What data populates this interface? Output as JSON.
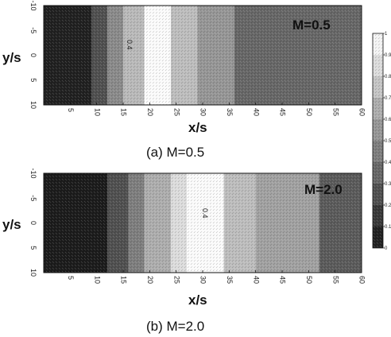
{
  "chart_data": [
    {
      "type": "heatmap",
      "panel_label": "M=0.5",
      "caption": "(a)  M=0.5",
      "xlabel": "x/s",
      "ylabel": "y/s",
      "x_ticks": [
        "5",
        "10",
        "15",
        "20",
        "25",
        "30",
        "35",
        "40",
        "45",
        "50",
        "55",
        "60"
      ],
      "y_ticks": [
        "-10",
        "-5",
        "0",
        "5",
        "10"
      ],
      "xlim": [
        0,
        60
      ],
      "ylim": [
        -10,
        10
      ],
      "in_plot_annotation": "0.4",
      "bands": [
        {
          "x0": 0,
          "x1": 9,
          "value": 0.05
        },
        {
          "x0": 9,
          "x1": 12,
          "value": 0.25
        },
        {
          "x0": 12,
          "x1": 15,
          "value": 0.5
        },
        {
          "x0": 15,
          "x1": 19,
          "value": 0.7
        },
        {
          "x0": 19,
          "x1": 24,
          "value": 0.98
        },
        {
          "x0": 24,
          "x1": 29,
          "value": 0.72
        },
        {
          "x0": 29,
          "x1": 36,
          "value": 0.55
        },
        {
          "x0": 36,
          "x1": 60,
          "value": 0.35
        }
      ]
    },
    {
      "type": "heatmap",
      "panel_label": "M=2.0",
      "caption": "(b)  M=2.0",
      "xlabel": "x/s",
      "ylabel": "y/s",
      "x_ticks": [
        "5",
        "10",
        "15",
        "20",
        "25",
        "30",
        "35",
        "40",
        "45",
        "50",
        "55",
        "60"
      ],
      "y_ticks": [
        "-10",
        "-5",
        "0",
        "5",
        "10"
      ],
      "xlim": [
        0,
        60
      ],
      "ylim": [
        -10,
        10
      ],
      "in_plot_annotation": "0.4",
      "bands": [
        {
          "x0": 0,
          "x1": 12,
          "value": 0.03
        },
        {
          "x0": 12,
          "x1": 16,
          "value": 0.25
        },
        {
          "x0": 16,
          "x1": 19,
          "value": 0.45
        },
        {
          "x0": 19,
          "x1": 24,
          "value": 0.65
        },
        {
          "x0": 24,
          "x1": 27,
          "value": 0.85
        },
        {
          "x0": 27,
          "x1": 34,
          "value": 0.98
        },
        {
          "x0": 34,
          "x1": 40,
          "value": 0.72
        },
        {
          "x0": 40,
          "x1": 52,
          "value": 0.6
        },
        {
          "x0": 52,
          "x1": 60,
          "value": 0.3
        }
      ]
    }
  ],
  "colorbar": {
    "ticks": [
      "0",
      "0.1",
      "0.2",
      "0.3",
      "0.4",
      "0.5",
      "0.6",
      "0.7",
      "0.8",
      "0.9",
      "1"
    ],
    "range": [
      0,
      1
    ],
    "colormap": "grayscale",
    "dark_color": "#151515",
    "light_color": "#ffffff"
  }
}
